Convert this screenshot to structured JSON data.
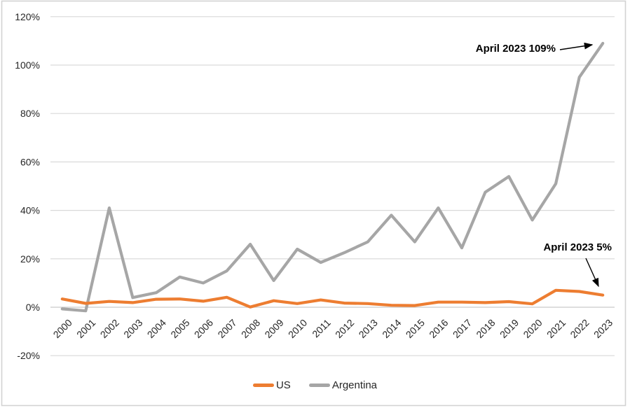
{
  "chart_data": {
    "type": "line",
    "title": "",
    "xlabel": "",
    "ylabel": "",
    "categories": [
      "2000",
      "2001",
      "2002",
      "2003",
      "2004",
      "2005",
      "2006",
      "2007",
      "2008",
      "2009",
      "2010",
      "2011",
      "2012",
      "2013",
      "2014",
      "2015",
      "2016",
      "2017",
      "2018",
      "2019",
      "2020",
      "2021",
      "2022",
      "2023"
    ],
    "series": [
      {
        "name": "US",
        "color": "#ED7D31",
        "values": [
          3.4,
          1.6,
          2.4,
          1.9,
          3.3,
          3.4,
          2.5,
          4.1,
          0.1,
          2.7,
          1.5,
          3.0,
          1.7,
          1.5,
          0.8,
          0.7,
          2.1,
          2.1,
          1.9,
          2.3,
          1.4,
          7.0,
          6.5,
          5.0
        ]
      },
      {
        "name": "Argentina",
        "color": "#A6A6A6",
        "values": [
          -0.7,
          -1.5,
          41,
          4,
          6,
          12.5,
          10,
          15,
          26,
          11,
          24,
          18.5,
          22.5,
          27,
          38,
          27,
          41,
          24.5,
          47.5,
          54,
          36,
          51,
          95,
          109
        ]
      }
    ],
    "ylim": [
      -20,
      120
    ],
    "yticks": [
      {
        "value": 120,
        "label": "120%"
      },
      {
        "value": 100,
        "label": "100%"
      },
      {
        "value": 80,
        "label": "80%"
      },
      {
        "value": 60,
        "label": "60%"
      },
      {
        "value": 40,
        "label": "40%"
      },
      {
        "value": 20,
        "label": "20%"
      },
      {
        "value": 0,
        "label": "0%"
      },
      {
        "value": -20,
        "label": "-20%"
      }
    ],
    "grid": true,
    "legend_position": "bottom",
    "annotations": [
      {
        "text": "April 2023 109%",
        "target_series": "Argentina",
        "target_value": 109
      },
      {
        "text": "April 2023 5%",
        "target_series": "US",
        "target_value": 5
      }
    ]
  },
  "colors": {
    "gridline": "#D9D9D9",
    "axis_line": "#C9C9C9",
    "chart_border": "#D2D2D2",
    "tick_text": "#262626",
    "annotation_text": "#000000",
    "arrow": "#000000",
    "background": "#FFFFFF"
  }
}
